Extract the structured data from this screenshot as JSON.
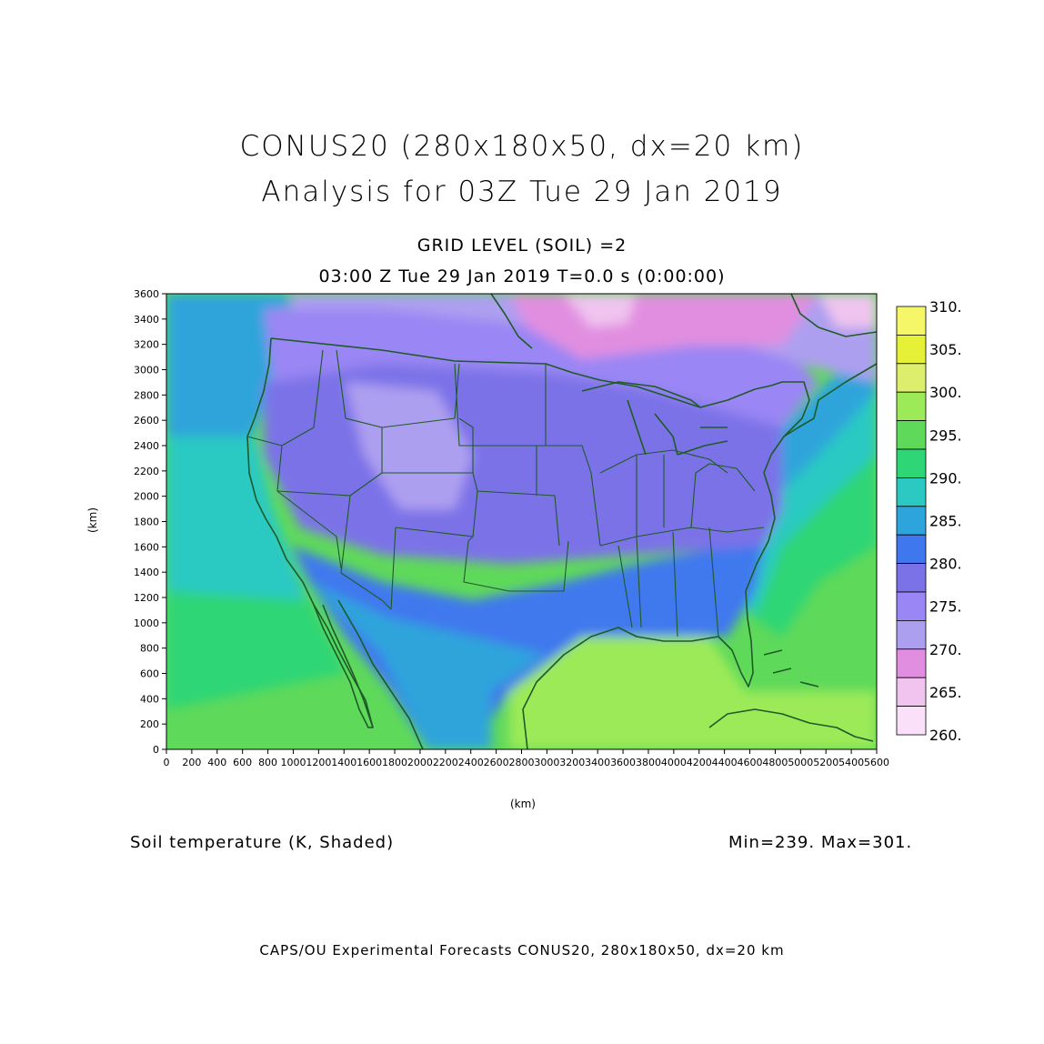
{
  "titles": {
    "line1": "CONUS20 (280x180x50, dx=20 km)",
    "line2": "Analysis for 03Z Tue 29 Jan 2019",
    "sub1": "GRID LEVEL (SOIL) =2",
    "sub2": "03:00 Z Tue 29 Jan 2019    T=0.0 s (0:00:00)"
  },
  "variable_label": "Soil temperature (K, Shaded)",
  "min_max": "Min=239.  Max=301.",
  "footer": "CAPS/OU Experimental Forecasts   CONUS20, 280x180x50, dx=20 km",
  "axes": {
    "x_label": "(km)",
    "y_label": "(km)",
    "x_range": [
      0,
      5600
    ],
    "y_range": [
      0,
      3600
    ],
    "x_ticks": [
      "0",
      "200",
      "400",
      "600",
      "800",
      "1000",
      "1200",
      "1400",
      "1600",
      "1800",
      "2000",
      "2200",
      "2400",
      "2600",
      "2800",
      "3000",
      "3200",
      "3400",
      "3600",
      "3800",
      "4000",
      "4200",
      "4400",
      "4600",
      "4800",
      "5000",
      "5200",
      "5400",
      "5600"
    ],
    "y_ticks": [
      "0",
      "200",
      "400",
      "600",
      "800",
      "1000",
      "1200",
      "1400",
      "1600",
      "1800",
      "2000",
      "2200",
      "2400",
      "2600",
      "2800",
      "3000",
      "3200",
      "3400",
      "3600"
    ]
  },
  "colorbar": {
    "labels": [
      "310.",
      "305.",
      "300.",
      "295.",
      "290.",
      "285.",
      "280.",
      "275.",
      "270.",
      "265.",
      "260."
    ],
    "colors": [
      "#f6f669",
      "#e5f036",
      "#dcee6b",
      "#9cea58",
      "#5fd95a",
      "#2fd676",
      "#2bc9c2",
      "#2da4db",
      "#3f78ee",
      "#7c72e8",
      "#9a86f4",
      "#ad9ff0",
      "#e18ee0",
      "#f0c4ef",
      "#fbe0fa"
    ]
  },
  "map": {
    "coast_color": "#1f5a28",
    "regions": {
      "ocean_warm": "#5fd95a",
      "ocean_cool": "#2fd676",
      "gulf": "#9cea58",
      "coastal_blue": "#2da4db",
      "pacific_teal": "#2bc9c2",
      "south_land": "#3f78ee",
      "mid_land": "#7c72e8",
      "north_land": "#9a86f4",
      "canada": "#ad9ff0",
      "canada_cold": "#e18ee0",
      "coldest": "#f0c4ef"
    }
  }
}
